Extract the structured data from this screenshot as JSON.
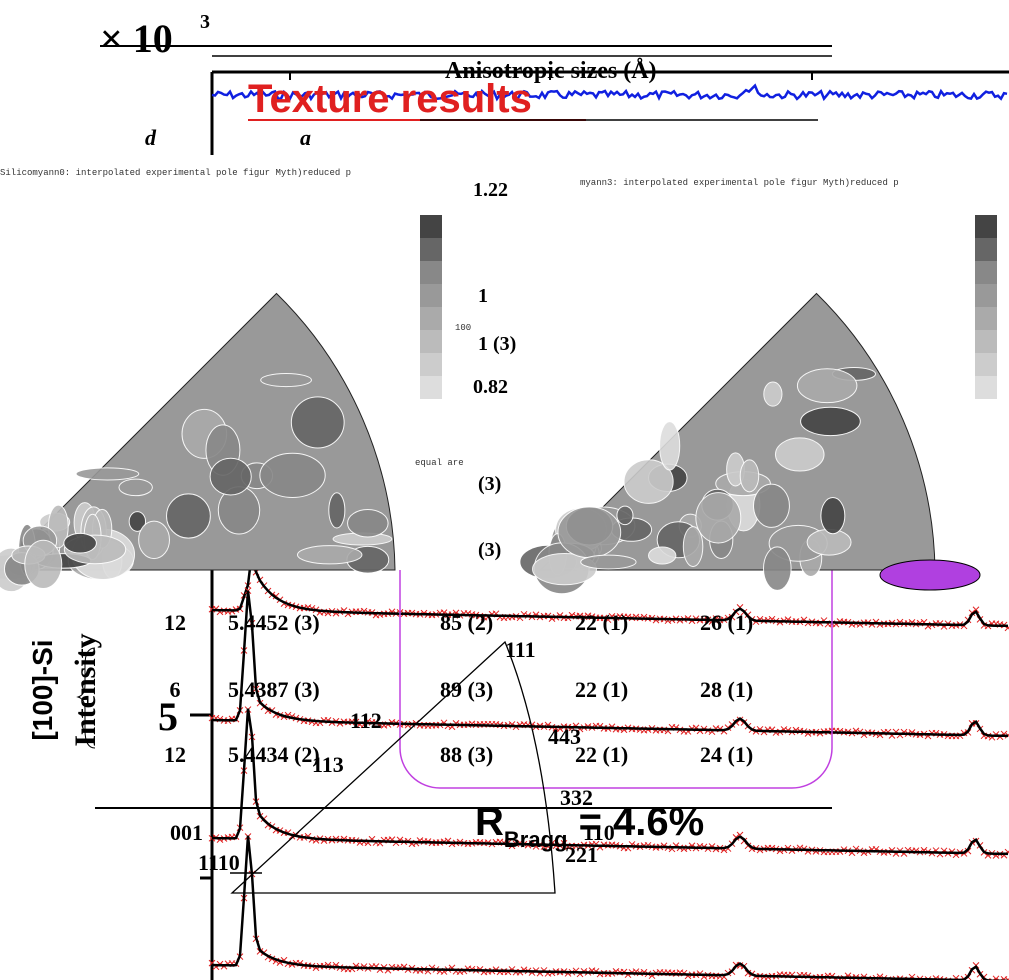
{
  "scale_label": {
    "base": "× 10",
    "exponent": "3"
  },
  "table_title": "Anisotropic sizes (Å)",
  "overlay_title": "Texture results",
  "column_headers": [
    "d",
    "a"
  ],
  "pole_figures": [
    {
      "caption": "Silicomyann0: interpolated experimental pole figur Myth)reduced p",
      "legend_tick": "100",
      "note": "equal are"
    },
    {
      "caption": "myann3: interpolated experimental pole figur Myth)reduced p"
    }
  ],
  "color_scale": [
    "1.22",
    "1",
    "0.82"
  ],
  "partial_cells": [
    "1 (3)",
    "(3)",
    "(3)"
  ],
  "rows": [
    [
      "12",
      "5.4452 (3)",
      "85 (2)",
      "22 (1)",
      "26 (1)"
    ],
    [
      "6",
      "5.4387 (3)",
      "89 (3)",
      "22 (1)",
      "28 (1)"
    ],
    [
      "12",
      "5.4434 (2)",
      "88 (3)",
      "22 (1)",
      "24 (1)"
    ]
  ],
  "y_axis_label": "Intensity",
  "sample_label": "[100]-Si",
  "y_ticks": [
    "5",
    "1"
  ],
  "triangle_labels": {
    "top": "111",
    "mid_left": "112",
    "low_left": "113",
    "right_upper": "443",
    "right_mid": "332",
    "right_low": "221",
    "left_low": "110",
    "origin": "001",
    "corner": "110"
  },
  "r_bragg": {
    "symbol": "R",
    "subscript": "Bragg",
    "value": " = 4.6%"
  }
}
